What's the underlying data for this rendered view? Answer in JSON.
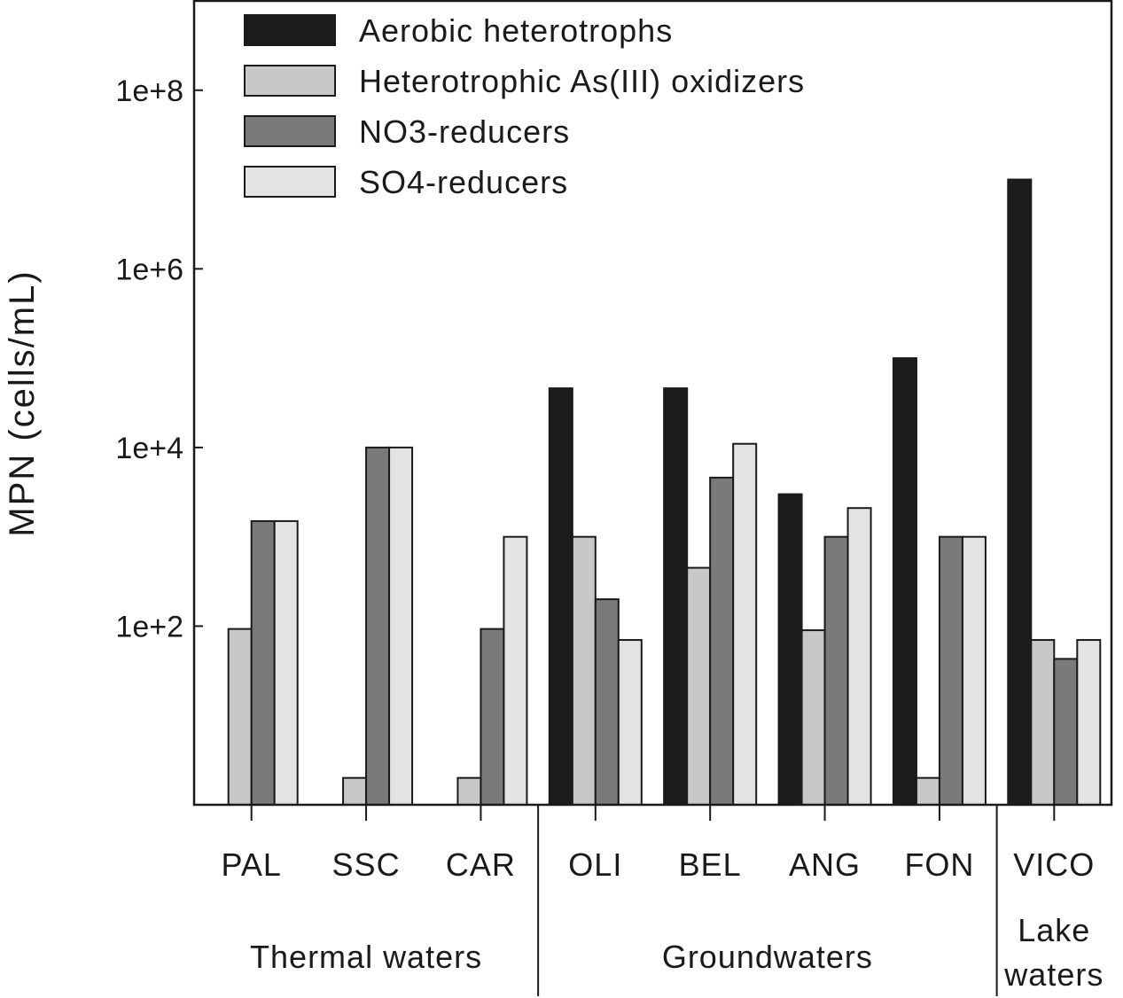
{
  "chart_data": {
    "type": "bar",
    "title": "",
    "xlabel": "",
    "ylabel": "MPN (cells/mL)",
    "yscale": "log",
    "ylim": [
      1,
      1000000000
    ],
    "yticks": [
      {
        "value": 100,
        "label": "1e+2"
      },
      {
        "value": 10000,
        "label": "1e+4"
      },
      {
        "value": 1000000,
        "label": "1e+6"
      },
      {
        "value": 100000000,
        "label": "1e+8"
      }
    ],
    "categories": [
      "PAL",
      "SSC",
      "CAR",
      "OLI",
      "BEL",
      "ANG",
      "FON",
      "VICO"
    ],
    "groups": [
      {
        "label": "Thermal waters",
        "categories": [
          "PAL",
          "SSC",
          "CAR"
        ]
      },
      {
        "label": "Groundwaters",
        "categories": [
          "OLI",
          "BEL",
          "ANG",
          "FON"
        ]
      },
      {
        "label": "Lake waters",
        "categories": [
          "VICO"
        ]
      }
    ],
    "series": [
      {
        "name": "Aerobic heterotrophs",
        "color": "#1c1c1c",
        "values": [
          null,
          null,
          null,
          46000,
          46000,
          3000,
          100000,
          10000000
        ]
      },
      {
        "name": "Heterotrophic As(III) oxidizers",
        "color": "#c8c8c8",
        "values": [
          93,
          2,
          2,
          1000,
          450,
          90,
          2,
          70
        ]
      },
      {
        "name": "NO3-reducers",
        "color": "#7a7a7a",
        "values": [
          1500,
          10000,
          93,
          200,
          4600,
          1000,
          1000,
          43
        ]
      },
      {
        "name": "SO4-reducers",
        "color": "#e3e3e3",
        "values": [
          1500,
          10000,
          1000,
          70,
          11000,
          2100,
          1000,
          70
        ]
      }
    ],
    "legend_position": "top-left",
    "grid": false
  }
}
